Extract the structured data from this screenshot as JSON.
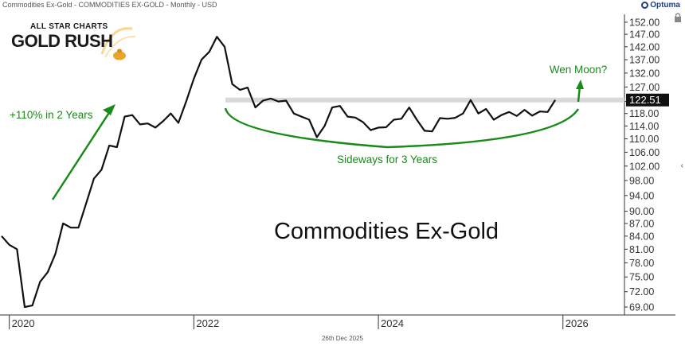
{
  "header": {
    "title": "Commodities Ex-Gold - COMMODITIES EX-GOLD - Monthly - USD",
    "brand": "Optuma",
    "date": "26th Dec 2025"
  },
  "logo": {
    "top_text": "ALL STAR CHARTS",
    "main_text": "GOLD RUSH"
  },
  "colors": {
    "line": "#111111",
    "annotation": "#1a8a1a",
    "band": "#d9d9d9",
    "price_label_bg": "#111111"
  },
  "chart_data": {
    "type": "line",
    "title": "Commodities Ex-Gold",
    "xlabel": "",
    "ylabel": "",
    "y_scale": "log",
    "ylim": [
      67.5,
      154
    ],
    "y_ticks": [
      69.0,
      72.0,
      75.0,
      78.0,
      81.0,
      84.0,
      87.0,
      90.0,
      94.0,
      98.0,
      102.0,
      106.0,
      110.0,
      114.0,
      118.0,
      122.0,
      127.0,
      132.0,
      137.0,
      142.0,
      147.0,
      152.0
    ],
    "y_tick_labels": [
      "69.00",
      "72.00",
      "75.00",
      "78.00",
      "81.00",
      "84.00",
      "87.00",
      "90.00",
      "94.00",
      "98.00",
      "102.00",
      "106.00",
      "110.00",
      "114.00",
      "118.00",
      "122.00",
      "127.00",
      "132.00",
      "137.00",
      "142.00",
      "147.00",
      "152.00"
    ],
    "x_ticks": [
      "2020-01",
      "2022-01",
      "2024-01",
      "2026-01"
    ],
    "x_tick_labels": [
      "2020",
      "2022",
      "2024",
      "2026"
    ],
    "xlim": [
      "2019-12",
      "2026-09"
    ],
    "last_value_label": "122.51",
    "band_value": 122.5,
    "series": [
      {
        "dates": [
          "2019-12",
          "2020-01",
          "2020-02",
          "2020-03",
          "2020-04",
          "2020-05",
          "2020-06",
          "2020-07",
          "2020-08",
          "2020-09",
          "2020-10",
          "2020-11",
          "2020-12",
          "2021-01",
          "2021-02",
          "2021-03",
          "2021-04",
          "2021-05",
          "2021-06",
          "2021-07",
          "2021-08",
          "2021-09",
          "2021-10",
          "2021-11",
          "2021-12",
          "2022-01",
          "2022-02",
          "2022-03",
          "2022-04",
          "2022-05",
          "2022-06",
          "2022-07",
          "2022-08",
          "2022-09",
          "2022-10",
          "2022-11",
          "2022-12",
          "2023-01",
          "2023-02",
          "2023-03",
          "2023-04",
          "2023-05",
          "2023-06",
          "2023-07",
          "2023-08",
          "2023-09",
          "2023-10",
          "2023-11",
          "2023-12",
          "2024-01",
          "2024-02",
          "2024-03",
          "2024-04",
          "2024-05",
          "2024-06",
          "2024-07",
          "2024-08",
          "2024-09",
          "2024-10",
          "2024-11",
          "2024-12",
          "2025-01",
          "2025-02",
          "2025-03",
          "2025-04",
          "2025-05",
          "2025-06",
          "2025-07",
          "2025-08",
          "2025-09",
          "2025-10",
          "2025-11",
          "2025-12"
        ],
        "values": [
          84.0,
          82.0,
          81.0,
          69.0,
          69.3,
          74.0,
          76.0,
          80.0,
          87.0,
          86.0,
          86.0,
          92.0,
          98.5,
          101.0,
          108.0,
          107.5,
          117.0,
          117.5,
          114.5,
          114.8,
          113.5,
          115.5,
          118.0,
          115.0,
          122.0,
          130.0,
          137.0,
          140.0,
          146.0,
          142.0,
          128.0,
          126.0,
          126.8,
          120.0,
          122.3,
          123.0,
          122.0,
          122.3,
          118.0,
          117.0,
          116.0,
          110.5,
          114.0,
          120.0,
          120.5,
          117.0,
          116.7,
          115.2,
          112.7,
          113.5,
          113.6,
          116.0,
          116.3,
          120.0,
          116.0,
          112.5,
          112.3,
          116.5,
          116.3,
          116.6,
          118.0,
          122.5,
          118.0,
          119.5,
          116.0,
          117.5,
          118.5,
          117.2,
          119.2,
          117.3,
          118.7,
          118.5,
          122.51
        ]
      }
    ],
    "annotations": {
      "rally": "+110% in 2 Years",
      "sideways": "Sideways for 3 Years",
      "moon": "Wen Moon?",
      "chart_label": "Commodities Ex-Gold"
    }
  }
}
